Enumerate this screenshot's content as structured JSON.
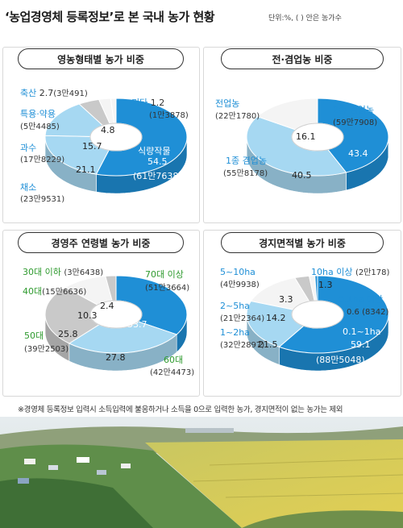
{
  "header": {
    "title": "‘농업경영체 등록정보’로 본 국내 농가 현황",
    "unit_note": "단위:%, ( ) 안은 농가수"
  },
  "footnote": "※경영체 등록정보 입력시 소득입력에 불응하거나 소득을 0으로 입력한 농가, 경지면적이 없는 농가는 제외",
  "colors": {
    "blue_dark": "#1f8fd6",
    "blue_light": "#a6d8f2",
    "gray": "#c9c9c9",
    "white": "#f4f4f4",
    "label_blue": "#1f8fd6",
    "label_green": "#2e9a2e"
  },
  "chart_data": [
    {
      "type": "pie",
      "title": "영농형태별 농가 비중",
      "slices": [
        {
          "name": "식량작물",
          "value": 54.5,
          "count": "61만7638"
        },
        {
          "name": "채소",
          "value": 21.1,
          "count": "23만9531"
        },
        {
          "name": "과수",
          "value": 15.7,
          "count": "17만8229"
        },
        {
          "name": "특용·약용",
          "value": 4.8,
          "count": "5만4485"
        },
        {
          "name": "축산",
          "value": 2.7,
          "count": "3만491"
        },
        {
          "name": "기타",
          "value": 1.2,
          "count": "1만3878"
        }
      ]
    },
    {
      "type": "pie",
      "title": "전·겸업농 비중",
      "slices": [
        {
          "name": "2종 겸업농",
          "value": 43.4,
          "count": "59만7908"
        },
        {
          "name": "1종 겸업농",
          "value": 40.5,
          "count": "55만8178"
        },
        {
          "name": "전업농",
          "value": 16.1,
          "count": "22만1780"
        }
      ]
    },
    {
      "type": "pie",
      "title": "경영주 연령별 농가 비중",
      "slices": [
        {
          "name": "70대 이상",
          "value": 33.7,
          "count": "51만3664"
        },
        {
          "name": "60대",
          "value": 27.8,
          "count": "42만4473"
        },
        {
          "name": "50대",
          "value": 25.8,
          "count": "39만2503"
        },
        {
          "name": "40대",
          "value": 10.3,
          "count": "15만6636"
        },
        {
          "name": "30대 이하",
          "value": 2.4,
          "count": "3만6438"
        }
      ]
    },
    {
      "type": "pie",
      "title": "경지면적별 농가 비중",
      "slices": [
        {
          "name": "0.1~1ha",
          "value": 59.1,
          "count": "88만5048"
        },
        {
          "name": "1~2ha",
          "value": 21.5,
          "count": "32만2897"
        },
        {
          "name": "2~5ha",
          "value": 14.2,
          "count": "21만2364"
        },
        {
          "name": "5~10ha",
          "value": 3.3,
          "count": "4만9938"
        },
        {
          "name": "10ha 이상",
          "value": 1.3,
          "count": "2만178"
        },
        {
          "name": "0.1ha 미만",
          "value": 0.6,
          "count": "8342"
        }
      ]
    }
  ]
}
